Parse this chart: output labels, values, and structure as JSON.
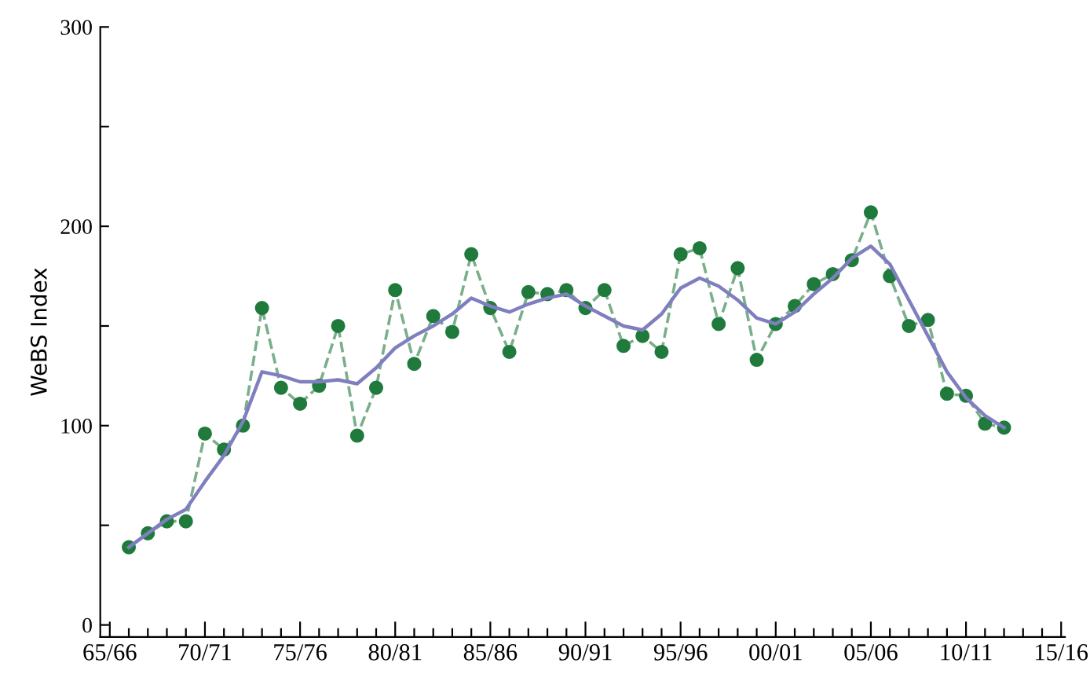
{
  "chart_data": {
    "type": "line",
    "ylabel": "WeBS Index",
    "categories": [
      "65/66",
      null,
      null,
      null,
      null,
      "70/71",
      null,
      null,
      null,
      null,
      "75/76",
      null,
      null,
      null,
      null,
      "80/81",
      null,
      null,
      null,
      null,
      "85/86",
      null,
      null,
      null,
      null,
      "90/91",
      null,
      null,
      null,
      null,
      "95/96",
      null,
      null,
      null,
      null,
      "00/01",
      null,
      null,
      null,
      null,
      "05/06",
      null,
      null,
      null,
      null,
      "10/11",
      null,
      null,
      null,
      null,
      "15/16"
    ],
    "series": [
      {
        "color": "#1f7a3c",
        "marker": "circle",
        "line_style": "dashed",
        "values": [
          null,
          39,
          46,
          52,
          52,
          96,
          88,
          100,
          159,
          119,
          111,
          120,
          150,
          95,
          119,
          168,
          131,
          155,
          147,
          186,
          159,
          137,
          167,
          166,
          168,
          159,
          168,
          140,
          145,
          137,
          186,
          189,
          151,
          179,
          133,
          151,
          160,
          171,
          176,
          183,
          207,
          175,
          150,
          153,
          116,
          115,
          101,
          99,
          null,
          null,
          null
        ]
      },
      {
        "color": "#7f7fbf",
        "marker": "none",
        "line_style": "solid",
        "values": [
          null,
          39,
          46,
          53,
          58,
          72,
          85,
          102,
          127,
          125,
          122,
          122,
          123,
          121,
          129,
          139,
          145,
          150,
          156,
          164,
          160,
          157,
          161,
          164,
          166,
          160,
          155,
          150,
          148,
          156,
          169,
          174,
          170,
          163,
          154,
          151,
          157,
          166,
          174,
          184,
          190,
          181,
          163,
          145,
          127,
          114,
          105,
          99,
          null,
          null,
          null
        ]
      }
    ],
    "ylim": [
      -6,
      300
    ],
    "yticks": [
      0,
      {
        "value": 50,
        "label": null
      },
      100,
      {
        "value": 150,
        "label": null
      },
      200,
      {
        "value": 250,
        "label": null
      },
      300
    ],
    "grid": false,
    "legend": false
  }
}
